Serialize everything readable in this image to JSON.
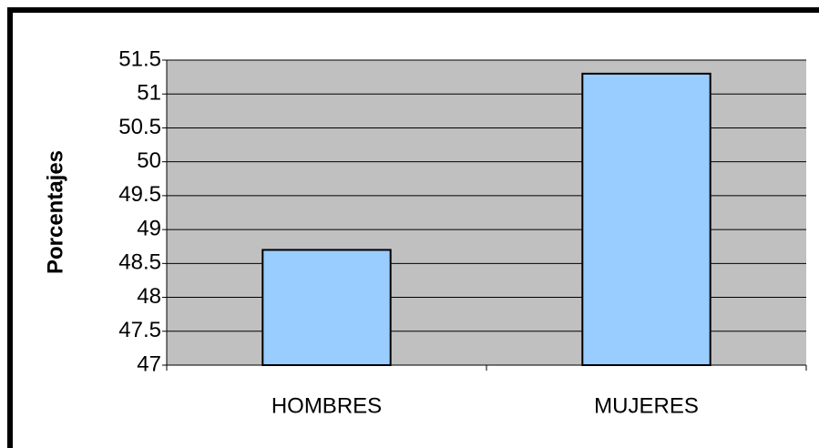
{
  "chart_data": {
    "type": "bar",
    "y_label": "Porcentajes",
    "categories": [
      "HOMBRES",
      "MUJERES"
    ],
    "values": [
      48.7,
      51.3
    ],
    "color": "#99ccff",
    "ylim": [
      47,
      51.5
    ],
    "yticks": [
      47,
      47.5,
      48,
      48.5,
      49,
      49.5,
      50,
      50.5,
      51,
      51.5
    ],
    "grid": true
  }
}
